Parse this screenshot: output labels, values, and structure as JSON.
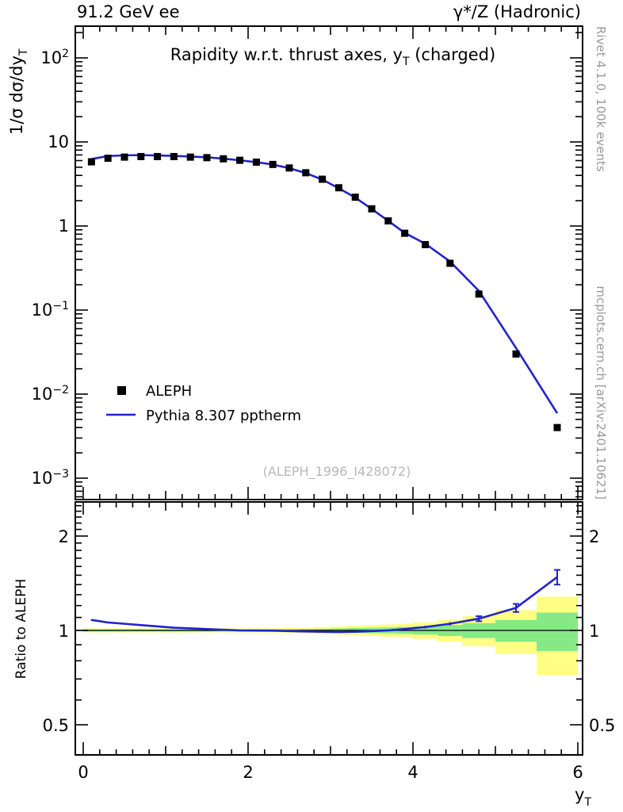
{
  "accent_colors": {
    "mc_line": "#2222cc",
    "band_yellow": "#ffff84",
    "band_green": "#86e986",
    "watermark_gray": "#b8b8b8",
    "side_text_gray": "#999999",
    "data_black": "#000000"
  },
  "header": {
    "left": "91.2 GeV ee",
    "right": "γ*/Z (Hadronic)"
  },
  "titles": {
    "main_pre": "Rapidity w.r.t. thrust axes, y",
    "main_sub": "T",
    "main_post": " (charged)",
    "ylabel_pre": "1/σ  dσ/dy",
    "ylabel_sub": "T",
    "ratio_ylabel": "Ratio to ALEPH",
    "xlabel_base": "y",
    "xlabel_sub": "T",
    "watermark": "(ALEPH_1996_I428072)",
    "side_top": "Rivet 4.1.0,  100k events",
    "side_bottom": "mcplots.cern.ch [arXiv:2401.10621]"
  },
  "legend": {
    "data_label": "ALEPH",
    "mc_label": "Pythia 8.307 pptherm"
  },
  "chart_data": {
    "type": "line",
    "title": "Rapidity w.r.t. thrust axes, yT (charged)",
    "xlabel": "yT",
    "ylabel": "1/σ dσ/dyT",
    "x_range": [
      0,
      6
    ],
    "y_scale": "log",
    "y_range": [
      0.00055,
      240
    ],
    "x_major_ticks": [
      0,
      2,
      4,
      6
    ],
    "y_tick_labels": [
      {
        "v": 100,
        "text": "10",
        "exp": "2"
      },
      {
        "v": 10,
        "text": "10",
        "exp": ""
      },
      {
        "v": 1,
        "text": "1",
        "exp": ""
      },
      {
        "v": 0.1,
        "text": "10",
        "exp": "−1"
      },
      {
        "v": 0.01,
        "text": "10",
        "exp": "−2"
      },
      {
        "v": 0.001,
        "text": "10",
        "exp": "−3"
      }
    ],
    "bin_edges": [
      0,
      0.2,
      0.4,
      0.6,
      0.8,
      1.0,
      1.2,
      1.4,
      1.6,
      1.8,
      2.0,
      2.2,
      2.4,
      2.6,
      2.8,
      3.0,
      3.2,
      3.4,
      3.6,
      3.8,
      4.0,
      4.3,
      4.6,
      5.0,
      5.5,
      6.0
    ],
    "x": [
      0.1,
      0.3,
      0.5,
      0.7,
      0.9,
      1.1,
      1.3,
      1.5,
      1.7,
      1.9,
      2.1,
      2.3,
      2.5,
      2.7,
      2.9,
      3.1,
      3.3,
      3.5,
      3.7,
      3.9,
      4.15,
      4.45,
      4.8,
      5.25,
      5.75
    ],
    "series": [
      {
        "name": "ALEPH",
        "style": "black-squares",
        "values": [
          5.8,
          6.4,
          6.6,
          6.7,
          6.7,
          6.7,
          6.6,
          6.5,
          6.3,
          6.05,
          5.75,
          5.4,
          4.9,
          4.3,
          3.6,
          2.85,
          2.2,
          1.6,
          1.15,
          0.82,
          0.6,
          0.36,
          0.155,
          0.03,
          0.004
        ]
      },
      {
        "name": "Pythia 8.307 pptherm",
        "style": "blue-line",
        "ratio_to_data": [
          1.08,
          1.06,
          1.05,
          1.04,
          1.03,
          1.02,
          1.015,
          1.01,
          1.005,
          1.0,
          0.999,
          0.998,
          0.995,
          0.992,
          0.99,
          0.988,
          0.99,
          0.995,
          1.0,
          1.01,
          1.025,
          1.05,
          1.09,
          1.18,
          1.48
        ]
      }
    ],
    "ratio_panel": {
      "y_scale": "log",
      "y_range": [
        0.4,
        2.57
      ],
      "major_ticks": [
        {
          "v": 2,
          "label": "2"
        },
        {
          "v": 1,
          "label": "1"
        },
        {
          "v": 0.5,
          "label": "0.5"
        }
      ],
      "ratio_err": [
        0.004,
        0.003,
        0.003,
        0.003,
        0.003,
        0.003,
        0.003,
        0.003,
        0.003,
        0.003,
        0.003,
        0.003,
        0.004,
        0.004,
        0.004,
        0.005,
        0.005,
        0.006,
        0.007,
        0.008,
        0.01,
        0.013,
        0.02,
        0.035,
        0.08
      ],
      "band_yellow_halfwidth": [
        0.015,
        0.015,
        0.015,
        0.015,
        0.015,
        0.015,
        0.015,
        0.015,
        0.015,
        0.015,
        0.015,
        0.016,
        0.018,
        0.02,
        0.025,
        0.03,
        0.035,
        0.04,
        0.045,
        0.05,
        0.06,
        0.08,
        0.11,
        0.16,
        0.28
      ],
      "band_green_halfwidth": [
        0.008,
        0.008,
        0.008,
        0.008,
        0.008,
        0.008,
        0.008,
        0.008,
        0.008,
        0.008,
        0.008,
        0.008,
        0.009,
        0.01,
        0.012,
        0.015,
        0.018,
        0.02,
        0.022,
        0.025,
        0.03,
        0.04,
        0.055,
        0.08,
        0.14
      ]
    }
  }
}
